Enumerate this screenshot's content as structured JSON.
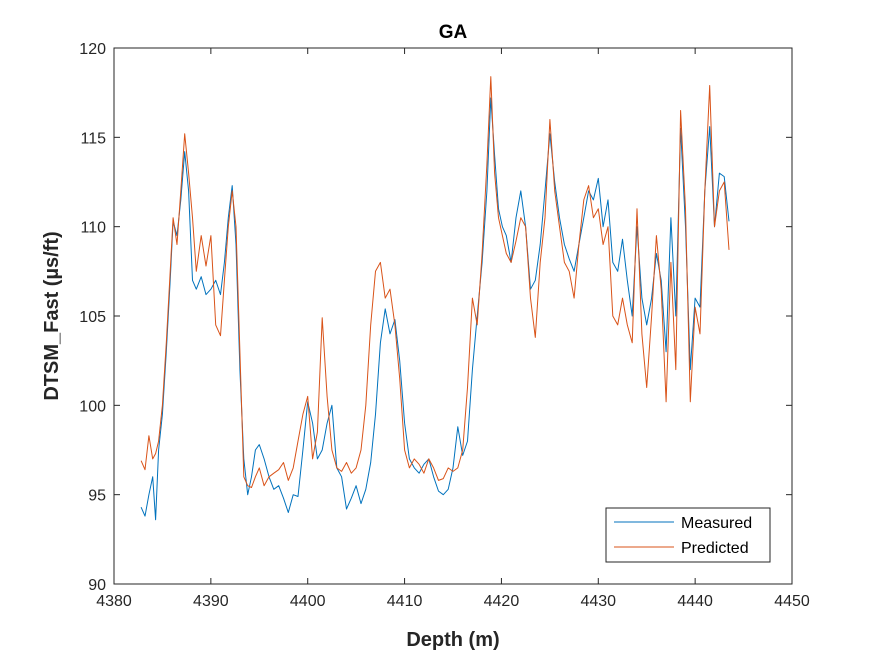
{
  "chart_data": {
    "type": "line",
    "title": "GA",
    "xlabel": "Depth (m)",
    "ylabel": "DTSM_Fast (µs/ft)",
    "xlim": [
      4380,
      4450
    ],
    "ylim": [
      90,
      120
    ],
    "xticks": [
      4380,
      4390,
      4400,
      4410,
      4420,
      4430,
      4440,
      4450
    ],
    "yticks": [
      90,
      95,
      100,
      105,
      110,
      115,
      120
    ],
    "grid": false,
    "legend_position": "bottom-right",
    "series": [
      {
        "name": "Measured",
        "color": "#0072BD",
        "x": [
          4382.8,
          4383.2,
          4383.6,
          4384.0,
          4384.3,
          4384.6,
          4385.0,
          4385.4,
          4385.8,
          4386.1,
          4386.5,
          4386.9,
          4387.3,
          4387.7,
          4388.1,
          4388.5,
          4389.0,
          4389.5,
          4390.0,
          4390.5,
          4391.0,
          4391.4,
          4391.8,
          4392.2,
          4392.6,
          4393.0,
          4393.4,
          4393.8,
          4394.2,
          4394.6,
          4395.0,
          4395.5,
          4396.0,
          4396.5,
          4397.0,
          4397.5,
          4398.0,
          4398.5,
          4399.0,
          4399.5,
          4400.0,
          4400.5,
          4401.0,
          4401.5,
          4402.0,
          4402.5,
          4403.0,
          4403.5,
          4404.0,
          4404.5,
          4405.0,
          4405.5,
          4406.0,
          4406.5,
          4407.0,
          4407.5,
          4408.0,
          4408.5,
          4409.0,
          4409.5,
          4410.0,
          4410.5,
          4411.0,
          4411.5,
          4412.0,
          4412.5,
          4413.0,
          4413.5,
          4414.0,
          4414.5,
          4415.0,
          4415.5,
          4416.0,
          4416.5,
          4417.0,
          4417.5,
          4418.0,
          4418.5,
          4418.9,
          4419.3,
          4419.7,
          4420.1,
          4420.5,
          4421.0,
          4421.5,
          4422.0,
          4422.5,
          4423.0,
          4423.5,
          4424.0,
          4424.5,
          4425.0,
          4425.5,
          4426.0,
          4426.5,
          4427.0,
          4427.5,
          4428.0,
          4428.5,
          4429.0,
          4429.5,
          4430.0,
          4430.5,
          4431.0,
          4431.5,
          4432.0,
          4432.5,
          4433.0,
          4433.5,
          4434.0,
          4434.5,
          4435.0,
          4435.5,
          4436.0,
          4436.5,
          4437.0,
          4437.5,
          4438.0,
          4438.5,
          4439.0,
          4439.5,
          4440.0,
          4440.5,
          4441.0,
          4441.5,
          4442.0,
          4442.5,
          4443.0,
          4443.5
        ],
        "y": [
          94.3,
          93.8,
          95.0,
          96.0,
          93.6,
          97.5,
          99.5,
          103.0,
          107.0,
          110.3,
          109.5,
          111.5,
          114.2,
          112.0,
          107.0,
          106.5,
          107.2,
          106.2,
          106.5,
          107.0,
          106.2,
          108.0,
          110.5,
          112.3,
          109.0,
          102.0,
          97.0,
          95.0,
          96.0,
          97.5,
          97.8,
          97.0,
          96.0,
          95.3,
          95.5,
          94.8,
          94.0,
          95.0,
          94.9,
          97.5,
          100.2,
          99.0,
          97.0,
          97.5,
          99.0,
          100.0,
          96.5,
          96.0,
          94.2,
          94.8,
          95.5,
          94.5,
          95.3,
          96.8,
          99.5,
          103.5,
          105.4,
          104.0,
          104.8,
          102.5,
          99.0,
          97.0,
          96.5,
          96.2,
          96.7,
          97.0,
          96.0,
          95.2,
          95.0,
          95.3,
          96.5,
          98.8,
          97.2,
          98.0,
          102.0,
          105.0,
          108.0,
          112.0,
          117.2,
          114.0,
          111.0,
          110.0,
          109.5,
          108.0,
          110.5,
          112.0,
          110.0,
          106.5,
          107.0,
          109.0,
          112.0,
          115.2,
          112.5,
          110.5,
          109.0,
          108.2,
          107.5,
          109.0,
          110.5,
          112.0,
          111.5,
          112.7,
          110.0,
          111.5,
          108.0,
          107.5,
          109.3,
          107.0,
          105.0,
          110.0,
          106.0,
          104.5,
          106.0,
          108.5,
          107.0,
          103.0,
          110.5,
          105.0,
          115.5,
          110.0,
          102.0,
          106.0,
          105.5,
          112.0,
          115.6,
          110.0,
          113.0,
          112.8,
          110.3
        ]
      },
      {
        "name": "Predicted",
        "color": "#D95319",
        "x": [
          4382.8,
          4383.2,
          4383.6,
          4384.0,
          4384.3,
          4384.6,
          4385.0,
          4385.4,
          4385.8,
          4386.1,
          4386.5,
          4386.9,
          4387.3,
          4387.7,
          4388.1,
          4388.5,
          4389.0,
          4389.5,
          4390.0,
          4390.5,
          4391.0,
          4391.4,
          4391.8,
          4392.2,
          4392.6,
          4393.0,
          4393.4,
          4393.8,
          4394.2,
          4394.6,
          4395.0,
          4395.5,
          4396.0,
          4396.5,
          4397.0,
          4397.5,
          4398.0,
          4398.5,
          4399.0,
          4399.5,
          4400.0,
          4400.5,
          4401.0,
          4401.5,
          4402.0,
          4402.5,
          4403.0,
          4403.5,
          4404.0,
          4404.5,
          4405.0,
          4405.5,
          4406.0,
          4406.5,
          4407.0,
          4407.5,
          4408.0,
          4408.5,
          4409.0,
          4409.5,
          4410.0,
          4410.5,
          4411.0,
          4411.5,
          4412.0,
          4412.5,
          4413.0,
          4413.5,
          4414.0,
          4414.5,
          4415.0,
          4415.5,
          4416.0,
          4416.5,
          4417.0,
          4417.5,
          4418.0,
          4418.5,
          4418.9,
          4419.3,
          4419.7,
          4420.1,
          4420.5,
          4421.0,
          4421.5,
          4422.0,
          4422.5,
          4423.0,
          4423.5,
          4424.0,
          4424.5,
          4425.0,
          4425.5,
          4426.0,
          4426.5,
          4427.0,
          4427.5,
          4428.0,
          4428.5,
          4429.0,
          4429.5,
          4430.0,
          4430.5,
          4431.0,
          4431.5,
          4432.0,
          4432.5,
          4433.0,
          4433.5,
          4434.0,
          4434.5,
          4435.0,
          4435.5,
          4436.0,
          4436.5,
          4437.0,
          4437.5,
          4438.0,
          4438.5,
          4439.0,
          4439.5,
          4440.0,
          4440.5,
          4441.0,
          4441.5,
          4442.0,
          4442.5,
          4443.0,
          4443.5
        ],
        "y": [
          96.9,
          96.4,
          98.3,
          97.0,
          97.3,
          98.0,
          100.0,
          103.5,
          107.5,
          110.5,
          109.0,
          112.0,
          115.2,
          113.0,
          110.5,
          107.5,
          109.5,
          107.8,
          109.5,
          104.5,
          103.9,
          107.0,
          110.0,
          112.0,
          110.0,
          103.0,
          96.0,
          95.5,
          95.4,
          96.0,
          96.5,
          95.5,
          96.0,
          96.2,
          96.4,
          96.8,
          95.8,
          96.5,
          98.0,
          99.5,
          100.5,
          97.0,
          98.5,
          104.9,
          100.5,
          97.5,
          96.5,
          96.3,
          96.8,
          96.2,
          96.5,
          97.5,
          100.0,
          104.5,
          107.5,
          108.0,
          106.0,
          106.5,
          104.5,
          101.5,
          97.5,
          96.5,
          97.0,
          96.7,
          96.2,
          97.0,
          96.5,
          95.8,
          95.9,
          96.5,
          96.3,
          96.5,
          97.5,
          101.0,
          106.0,
          104.5,
          108.5,
          113.5,
          118.4,
          113.0,
          110.5,
          109.5,
          108.5,
          108.0,
          109.2,
          110.5,
          110.0,
          106.0,
          103.8,
          108.0,
          110.5,
          116.0,
          112.0,
          110.0,
          108.0,
          107.5,
          106.0,
          109.0,
          111.5,
          112.3,
          110.5,
          111.0,
          109.0,
          110.0,
          105.0,
          104.5,
          106.0,
          104.5,
          103.5,
          111.0,
          104.0,
          101.0,
          105.0,
          109.5,
          106.5,
          100.2,
          108.0,
          102.0,
          116.5,
          111.0,
          100.2,
          105.5,
          104.0,
          112.0,
          117.9,
          110.0,
          112.0,
          112.5,
          108.7
        ]
      }
    ]
  }
}
